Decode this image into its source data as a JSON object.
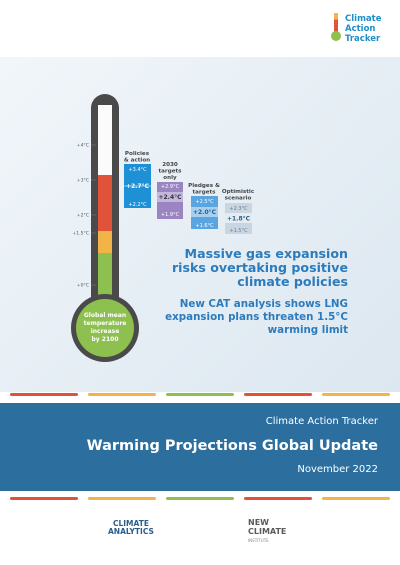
{
  "logo": {
    "line1": "Climate",
    "line2": "Action",
    "line3": "Tracker"
  },
  "thermometer": {
    "ticks": [
      "+4°C",
      "+3°C",
      "+2°C",
      "+1.5°C",
      "+0°C"
    ],
    "bulb_label": [
      "Global mean",
      "temperature",
      "increase",
      "by 2100"
    ]
  },
  "scenarios": [
    {
      "title": [
        "Policies",
        "& action"
      ],
      "high": "+3.4°C",
      "mid": "+2.7°C",
      "low": "+2.2°C",
      "color": "#1e90d6"
    },
    {
      "title": [
        "2030",
        "targets",
        "only"
      ],
      "high": "+2.9°C",
      "mid": "+2.4°C",
      "low": "+1.9°C",
      "color": "#9a85c2"
    },
    {
      "title": [
        "Pledges &",
        "targets"
      ],
      "high": "+2.5°C",
      "mid": "+2.0°C",
      "low": "+1.6°C",
      "color": "#5aa5e0"
    },
    {
      "title": [
        "Optimistic",
        "scenario"
      ],
      "high": "+2.3°C",
      "mid": "+1.8°C",
      "low": "+1.5°C",
      "color": "#8fa9bf"
    }
  ],
  "headline": "Massive gas expansion risks overtaking positive climate policies",
  "subhead": "New CAT analysis shows LNG expansion plans threaten 1.5°C warming limit",
  "band": {
    "org": "Climate Action Tracker",
    "title": "Warming Projections Global Update",
    "date": "November 2022"
  },
  "stripe_colors": [
    "#e0533a",
    "#f2b446",
    "#8dc04e",
    "#e0533a",
    "#f2b446"
  ],
  "partners": {
    "climate_analytics": [
      "CLIMATE",
      "ANALYTICS"
    ],
    "new_climate": [
      "NEW",
      "CLIMATE"
    ],
    "new_climate_sub": "INSTITUTE"
  }
}
